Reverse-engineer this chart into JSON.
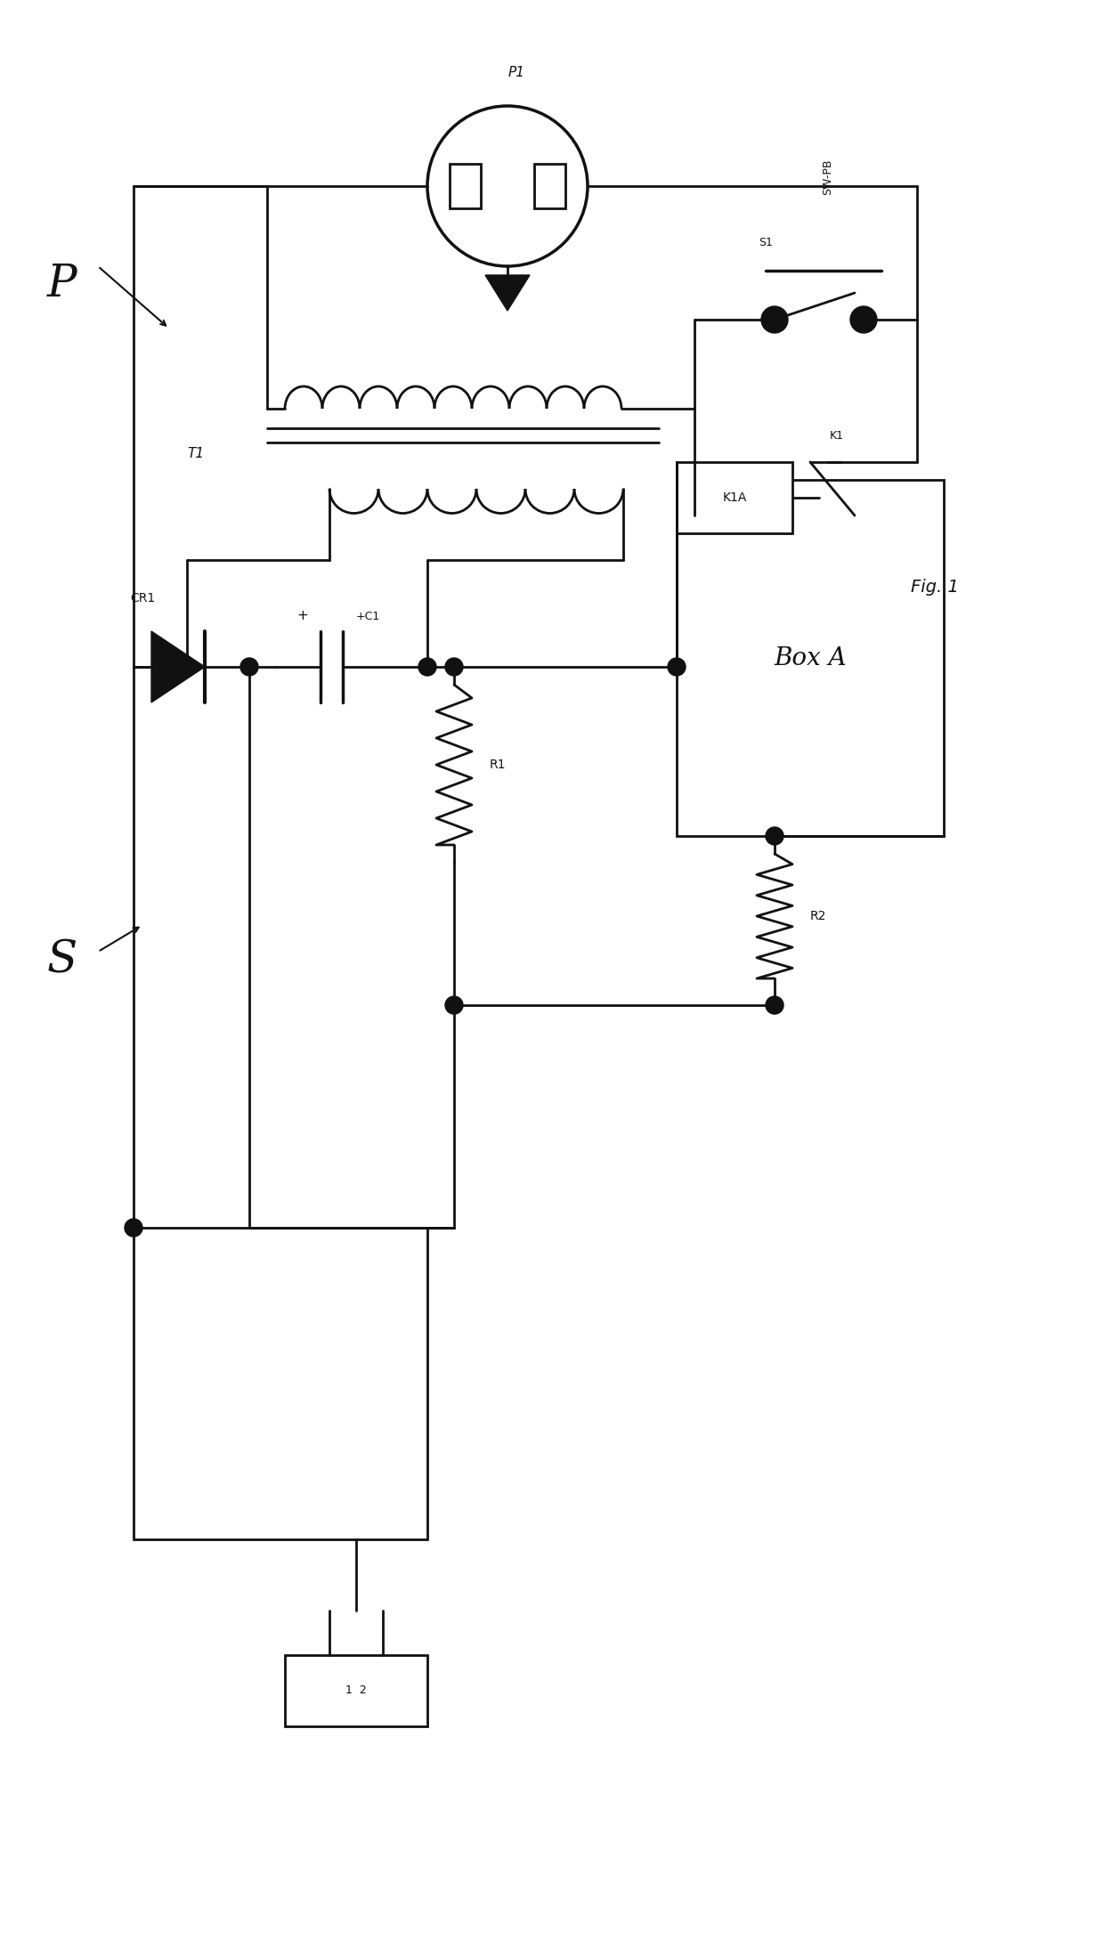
{
  "bg_color": "#ffffff",
  "lc": "#111111",
  "lw": 2.0,
  "fig_label": "Fig. 1",
  "P1_label": "P1",
  "T1_label": "T1",
  "CR1_label": "CR1",
  "C1_label": "+C1",
  "R1_label": "R1",
  "R2_label": "R2",
  "K1_label": "K1",
  "K1A_label": "K1A",
  "S1_label": "S1",
  "SW_PB_label": "SW-PB",
  "BoxA_label": "Box A",
  "P_label": "P",
  "S_label": "S",
  "connector_label": "1  2"
}
